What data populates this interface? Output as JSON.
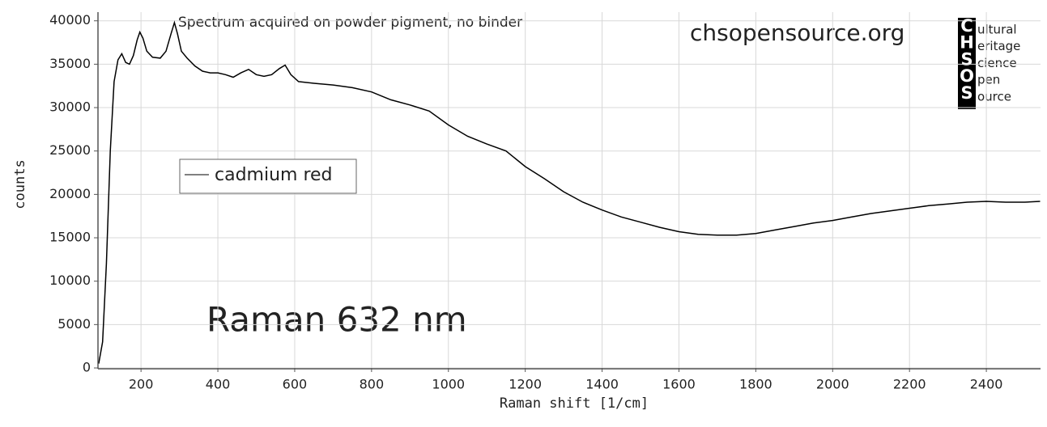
{
  "chart_data": {
    "type": "line",
    "annotations": [
      "Spectrum acquired on powder pigment, no binder",
      "chsopensource.org",
      "Raman 632 nm"
    ],
    "logo": {
      "letters": [
        "C",
        "H",
        "S",
        "O",
        "S"
      ],
      "words": [
        "ultural",
        "eritage",
        "cience",
        "pen",
        "ource"
      ]
    },
    "x_label": "Raman shift [1/cm]",
    "y_label": "counts",
    "x": [
      90,
      100,
      110,
      120,
      130,
      140,
      150,
      160,
      170,
      180,
      190,
      197,
      205,
      215,
      230,
      250,
      265,
      278,
      287,
      295,
      305,
      320,
      340,
      360,
      380,
      400,
      420,
      440,
      460,
      480,
      500,
      520,
      540,
      560,
      575,
      590,
      610,
      650,
      700,
      750,
      800,
      850,
      900,
      950,
      1000,
      1050,
      1100,
      1150,
      1200,
      1250,
      1300,
      1350,
      1400,
      1450,
      1500,
      1550,
      1600,
      1650,
      1700,
      1750,
      1800,
      1850,
      1900,
      1950,
      2000,
      2050,
      2100,
      2150,
      2200,
      2250,
      2300,
      2350,
      2400,
      2450,
      2500,
      2540
    ],
    "series": [
      {
        "name": "cadmium red",
        "color": "#000000",
        "values": [
          500,
          3000,
          12000,
          25000,
          33000,
          35500,
          36200,
          35200,
          35000,
          36000,
          37800,
          38700,
          38000,
          36500,
          35800,
          35700,
          36500,
          38500,
          39800,
          38500,
          36500,
          35700,
          34800,
          34200,
          34000,
          34000,
          33800,
          33500,
          34000,
          34400,
          33800,
          33600,
          33800,
          34500,
          34900,
          33800,
          33000,
          32800,
          32600,
          32300,
          31800,
          30900,
          30300,
          29600,
          28000,
          26700,
          25800,
          25000,
          23200,
          21800,
          20300,
          19100,
          18200,
          17400,
          16800,
          16200,
          15700,
          15400,
          15300,
          15300,
          15500,
          15900,
          16300,
          16700,
          17000,
          17400,
          17800,
          18100,
          18400,
          18700,
          18900,
          19100,
          19200,
          19100,
          19100,
          19200
        ]
      }
    ],
    "xlim": [
      88,
      2541
    ],
    "ylim": [
      0,
      41000
    ],
    "xticks": [
      200,
      400,
      600,
      800,
      1000,
      1200,
      1400,
      1600,
      1800,
      2000,
      2200,
      2400
    ],
    "yticks": [
      0,
      5000,
      10000,
      15000,
      20000,
      25000,
      30000,
      35000,
      40000
    ],
    "grid": true
  }
}
